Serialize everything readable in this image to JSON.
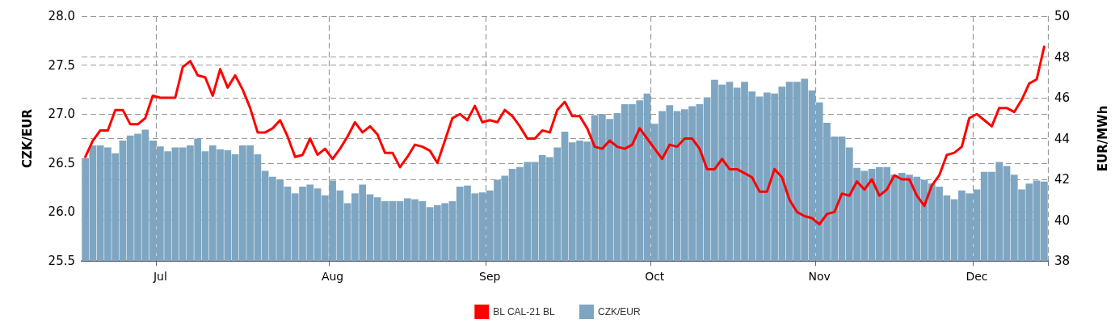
{
  "chart_data": {
    "type": "bar",
    "categories": [
      null,
      null,
      null,
      null,
      null,
      null,
      null,
      null,
      null,
      null,
      "Jul",
      null,
      null,
      null,
      null,
      null,
      null,
      null,
      null,
      null,
      null,
      null,
      null,
      null,
      null,
      null,
      null,
      null,
      null,
      null,
      null,
      null,
      null,
      "Aug",
      null,
      null,
      null,
      null,
      null,
      null,
      null,
      null,
      null,
      null,
      null,
      null,
      null,
      null,
      null,
      null,
      null,
      null,
      null,
      null,
      "Sep",
      null,
      null,
      null,
      null,
      null,
      null,
      null,
      null,
      null,
      null,
      null,
      null,
      null,
      null,
      null,
      null,
      null,
      null,
      null,
      null,
      null,
      "Oct",
      null,
      null,
      null,
      null,
      null,
      null,
      null,
      null,
      null,
      null,
      null,
      null,
      null,
      null,
      null,
      null,
      null,
      null,
      null,
      null,
      null,
      "Nov",
      null,
      null,
      null,
      null,
      null,
      null,
      null,
      null,
      null,
      null,
      null,
      null,
      null,
      null,
      null,
      null,
      null,
      null,
      null,
      null,
      "Dec",
      null,
      null,
      null,
      null,
      null,
      null,
      null,
      null,
      null
    ],
    "series": [
      {
        "name": "BL CAL-21 BL",
        "type": "line",
        "axis": "y2",
        "color": "#ff0000",
        "values": [
          43.1,
          43.9,
          44.4,
          44.4,
          45.4,
          45.4,
          44.7,
          44.7,
          45.0,
          46.1,
          46.0,
          46.0,
          46.0,
          47.5,
          47.8,
          47.1,
          47.0,
          46.1,
          47.4,
          46.5,
          47.1,
          46.4,
          45.5,
          44.3,
          44.3,
          44.5,
          44.9,
          44.1,
          43.1,
          43.2,
          44.0,
          43.2,
          43.5,
          43.0,
          43.5,
          44.1,
          44.8,
          44.3,
          44.6,
          44.2,
          43.3,
          43.3,
          42.6,
          43.1,
          43.7,
          43.6,
          43.4,
          42.8,
          43.9,
          45.0,
          45.2,
          44.9,
          45.6,
          44.8,
          44.9,
          44.8,
          45.4,
          45.1,
          44.6,
          44.0,
          44.0,
          44.4,
          44.3,
          45.4,
          45.8,
          45.1,
          45.1,
          44.5,
          43.6,
          43.5,
          43.9,
          43.6,
          43.5,
          43.7,
          44.5,
          44.0,
          43.5,
          43.0,
          43.7,
          43.6,
          44.0,
          44.0,
          43.5,
          42.5,
          42.5,
          43.0,
          42.5,
          42.5,
          42.3,
          42.1,
          41.4,
          41.4,
          42.5,
          42.1,
          41.0,
          40.4,
          40.2,
          40.1,
          39.8,
          40.3,
          40.4,
          41.3,
          41.2,
          41.9,
          41.5,
          42.0,
          41.2,
          41.5,
          42.2,
          42.0,
          42.0,
          41.2,
          40.7,
          41.7,
          42.2,
          43.2,
          43.3,
          43.6,
          45.0,
          45.2,
          44.9,
          44.6,
          45.5,
          45.5,
          45.3,
          45.9,
          46.7,
          46.9,
          48.5
        ]
      },
      {
        "name": "CZK/EUR",
        "color": "#7ea6c2",
        "values": [
          26.55,
          26.68,
          26.68,
          26.66,
          26.6,
          26.73,
          26.78,
          26.8,
          26.84,
          26.73,
          26.67,
          26.62,
          26.66,
          26.66,
          26.68,
          26.75,
          26.62,
          26.68,
          26.64,
          26.63,
          26.59,
          26.68,
          26.68,
          26.59,
          26.42,
          26.36,
          26.33,
          26.26,
          26.19,
          26.26,
          26.28,
          26.24,
          26.17,
          26.32,
          26.22,
          26.09,
          26.19,
          26.28,
          26.18,
          26.15,
          26.11,
          26.11,
          26.11,
          26.14,
          26.13,
          26.11,
          26.05,
          26.07,
          26.09,
          26.11,
          26.26,
          26.27,
          26.19,
          26.2,
          26.22,
          26.33,
          26.37,
          26.44,
          26.46,
          26.51,
          26.51,
          26.58,
          26.56,
          26.66,
          26.82,
          26.71,
          26.73,
          26.72,
          26.99,
          27.0,
          26.95,
          27.01,
          27.1,
          27.1,
          27.14,
          27.21,
          26.9,
          27.03,
          27.09,
          27.03,
          27.05,
          27.08,
          27.1,
          27.17,
          27.35,
          27.3,
          27.33,
          27.27,
          27.33,
          27.23,
          27.18,
          27.22,
          27.21,
          27.28,
          27.33,
          27.33,
          27.36,
          27.24,
          27.12,
          26.91,
          26.77,
          26.77,
          26.66,
          26.45,
          26.42,
          26.44,
          26.46,
          26.46,
          26.38,
          26.4,
          26.38,
          26.36,
          26.33,
          26.29,
          26.26,
          26.17,
          26.13,
          26.22,
          26.19,
          26.23,
          26.41,
          26.41,
          26.51,
          26.47,
          26.38,
          26.23,
          26.29,
          26.32,
          26.31
        ]
      }
    ],
    "ylabel": "CZK/EUR",
    "y2label": "EUR/MWh",
    "ylim": [
      25.5,
      28.0
    ],
    "yticks": [
      {
        "value": 25.5,
        "label": "25.5"
      },
      {
        "value": 26,
        "label": "26.0"
      },
      {
        "value": 26.5,
        "label": "26.5"
      },
      {
        "value": 27,
        "label": "27.0"
      },
      {
        "value": 27.5,
        "label": "27.5"
      },
      {
        "value": 28,
        "label": "28.0"
      }
    ],
    "y2lim": [
      38,
      50
    ],
    "y2ticks": [
      38,
      40,
      42,
      44,
      46,
      48,
      50
    ],
    "grid": true,
    "legend": "bottom",
    "marker": "none",
    "line_style": "solid"
  }
}
